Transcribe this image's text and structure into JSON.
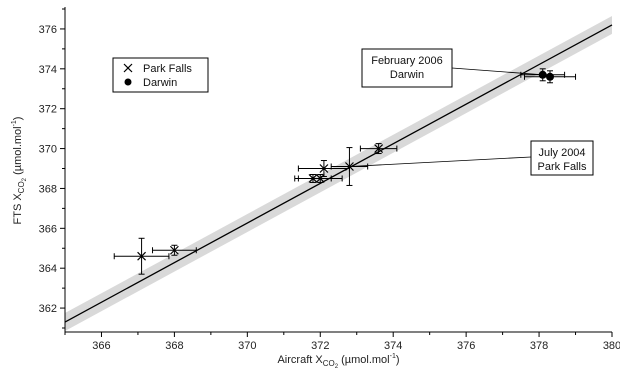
{
  "chart_data": {
    "type": "scatter",
    "xlabel": {
      "main": "Aircraft X",
      "sub": "CO",
      "subsub": "2",
      "unit": "(µmol.mol",
      "unit_exp": "-1",
      "unit_end": ")"
    },
    "ylabel": {
      "main": "FTS X",
      "sub": "CO",
      "subsub": "2",
      "unit": "(µmol.mol",
      "unit_exp": "-1",
      "unit_end": ")"
    },
    "xlim": [
      365,
      380
    ],
    "ylim": [
      360.8,
      377
    ],
    "x_ticks": [
      366,
      368,
      370,
      372,
      374,
      376,
      378,
      380
    ],
    "y_ticks": [
      362,
      364,
      366,
      368,
      370,
      372,
      374,
      376
    ],
    "x_tick_labels": [
      "366",
      "368",
      "370",
      "372",
      "374",
      "376",
      "378",
      "380"
    ],
    "y_tick_labels": [
      "362",
      "364",
      "366",
      "368",
      "370",
      "372",
      "374",
      "376"
    ],
    "grid": false,
    "legend_position": "top-left",
    "series": [
      {
        "name": "Park Falls",
        "marker": "x",
        "points": [
          {
            "x": 367.1,
            "y": 364.6,
            "xerr": 0.75,
            "yerr": 0.9
          },
          {
            "x": 368.0,
            "y": 364.9,
            "xerr": 0.6,
            "yerr": 0.25
          },
          {
            "x": 371.8,
            "y": 368.5,
            "xerr": 0.5,
            "yerr": 0.2
          },
          {
            "x": 372.0,
            "y": 368.5,
            "xerr": 0.6,
            "yerr": 0.2
          },
          {
            "x": 372.1,
            "y": 369.0,
            "xerr": 0.7,
            "yerr": 0.4
          },
          {
            "x": 372.8,
            "y": 369.1,
            "xerr": 0.5,
            "yerr": 0.95
          },
          {
            "x": 373.6,
            "y": 370.0,
            "xerr": 0.5,
            "yerr": 0.25
          }
        ]
      },
      {
        "name": "Darwin",
        "marker": "filled-circle",
        "points": [
          {
            "x": 378.1,
            "y": 373.7,
            "xerr": 0.6,
            "yerr": 0.3
          },
          {
            "x": 378.3,
            "y": 373.6,
            "xerr": 0.7,
            "yerr": 0.3
          }
        ]
      }
    ],
    "fit_line": {
      "x": [
        365,
        380
      ],
      "y": [
        361.3,
        376.2
      ]
    },
    "fit_band_halfwidth": 0.45,
    "annotations": [
      {
        "lines": [
          "February 2006",
          "Darwin"
        ],
        "target": {
          "x": 378.1,
          "y": 373.7
        }
      },
      {
        "lines": [
          "July 2004",
          "Park Falls"
        ],
        "target": {
          "x": 372.8,
          "y": 369.1
        }
      }
    ],
    "colors": {
      "band": "#d9d9d9",
      "line": "#000000",
      "markers": "#000000"
    }
  }
}
